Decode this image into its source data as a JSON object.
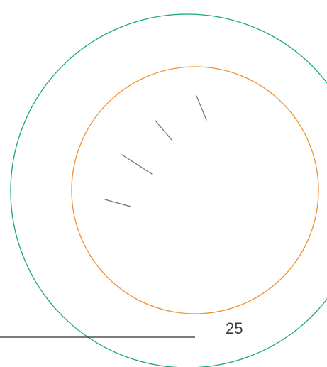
{
  "page_number": "25",
  "colors": {
    "outer_circle": "#1aa67d",
    "inner_circle": "#f0902e",
    "tick_marks": "#6f6f6f",
    "rule_line": "#2b2b2b",
    "background": "#ffffff"
  }
}
